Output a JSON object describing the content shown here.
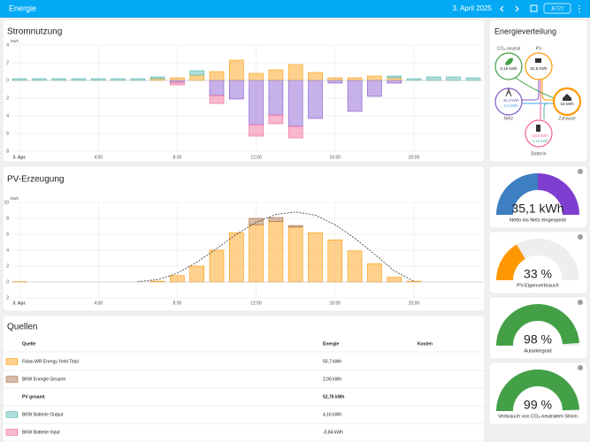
{
  "header": {
    "title": "Energie",
    "date": "3. April 2025",
    "button": "JETZT"
  },
  "chart_data": [
    {
      "type": "bar",
      "title": "Stromnutzung",
      "y_label": "kWh",
      "stacked": true,
      "grid": true,
      "categories": [
        "3. Apr.",
        null,
        null,
        null,
        "4:00",
        null,
        null,
        null,
        "8:00",
        null,
        null,
        null,
        "12:00",
        null,
        null,
        null,
        "16:00",
        null,
        null,
        null,
        "20:00",
        null,
        null,
        null
      ],
      "ylim": [
        -8,
        4
      ],
      "yticks": [
        {
          "value": -8,
          "label": "8"
        },
        {
          "value": -6,
          "label": "6"
        },
        {
          "value": -4,
          "label": "4"
        },
        {
          "value": -2,
          "label": "2"
        },
        0,
        2,
        4
      ],
      "series": [
        {
          "color": "#ff9800",
          "values": [
            0,
            0,
            0,
            0,
            0,
            0,
            0,
            0.2,
            0.3,
            0.6,
            1.0,
            2.3,
            0.8,
            1.2,
            1.8,
            0.9,
            0.3,
            0.3,
            0.5,
            0.3,
            0,
            0,
            0,
            0
          ]
        },
        {
          "color": "#4db6ac",
          "values": [
            0.2,
            0.2,
            0.2,
            0.2,
            0.2,
            0.2,
            0.2,
            0.2,
            0,
            0.5,
            0,
            0,
            0,
            0,
            0,
            0,
            0,
            0,
            0,
            0.2,
            0.2,
            0.4,
            0.4,
            0.3
          ]
        },
        {
          "color": "#8353d1",
          "values": [
            0,
            0,
            0,
            0,
            0,
            0,
            0,
            0,
            -0.2,
            0,
            -1.7,
            -2.1,
            -5.0,
            -3.9,
            -5.2,
            -4.3,
            -0.3,
            -3.5,
            -1.8,
            -0.3,
            0,
            0,
            0,
            0
          ]
        },
        {
          "color": "#f06292",
          "values": [
            0,
            0,
            0,
            0,
            0,
            0,
            0,
            0,
            -0.3,
            0,
            -0.9,
            0,
            -1.3,
            -1.0,
            -1.3,
            0,
            0,
            0,
            0,
            0,
            0,
            0,
            0,
            0
          ]
        }
      ]
    },
    {
      "type": "bar",
      "title": "PV-Erzeugung",
      "y_label": "kWh",
      "stacked": true,
      "grid": true,
      "categories": [
        "3. Apr.",
        null,
        null,
        null,
        "4:00",
        null,
        null,
        null,
        "8:00",
        null,
        null,
        null,
        "12:00",
        null,
        null,
        null,
        "16:00",
        null,
        null,
        null,
        "20:00",
        null,
        null,
        null
      ],
      "ylim": [
        -2,
        10
      ],
      "yticks": [
        {
          "value": -2,
          "label": "2"
        },
        0,
        2,
        4,
        6,
        8,
        10
      ],
      "series": [
        {
          "color": "#ff9800",
          "values": [
            0.05,
            0,
            0,
            0,
            0,
            0,
            0,
            0.1,
            0.8,
            2.0,
            4.0,
            6.2,
            7.2,
            7.6,
            6.9,
            6.2,
            5.3,
            3.9,
            2.3,
            0.6,
            0.1,
            0,
            0,
            0
          ]
        },
        {
          "color": "#a5683c",
          "values": [
            0,
            0,
            0,
            0,
            0,
            0,
            0,
            0,
            0,
            0,
            0,
            0,
            0.8,
            0.5,
            0.2,
            0,
            0,
            0,
            0,
            0,
            0,
            0,
            0,
            0
          ]
        },
        {
          "type": "line",
          "dashed": true,
          "color": "#333333",
          "values": [
            null,
            null,
            null,
            null,
            null,
            null,
            0.05,
            0.3,
            1.1,
            2.5,
            4.2,
            6.0,
            7.5,
            8.5,
            8.8,
            8.4,
            7.2,
            5.5,
            3.5,
            1.4,
            0.1,
            null,
            null,
            null
          ]
        }
      ]
    }
  ],
  "sources": {
    "title": "Quellen",
    "columns": [
      "Quelle",
      "Energie",
      "Kosten"
    ],
    "pv_rows": [
      {
        "name": "Fidan-WR Energy Yield Total",
        "energy": "50,7 kWh",
        "color": "#ff9800"
      },
      {
        "name": "BKW Energie Gesamt",
        "energy": "2,06 kWh",
        "color": "#a5683c"
      }
    ],
    "subtotal": {
      "name": "PV gesamt",
      "energy": "52,76 kWh"
    },
    "battery_rows": [
      {
        "name": "BKW Batterie Output",
        "energy": "4,16 kWh",
        "color": "#4db6ac"
      },
      {
        "name": "BKW Batterie Input",
        "energy": "-5,84 kWh",
        "color": "#f06292"
      }
    ]
  },
  "distribution": {
    "title": "Energieverteilung",
    "co2": {
      "label": "CO₂-neutral",
      "value": "0,16 kWh"
    },
    "pv": {
      "label": "PV",
      "value": "52,8 kWh"
    },
    "grid": {
      "label": "Netz",
      "out": "← 35,4 kWh",
      "in": "→ 0,3 kWh"
    },
    "home": {
      "label": "Zuhause",
      "value": "16 kWh"
    },
    "battery": {
      "label": "Batterie",
      "in": "↓ 5,84 kWh",
      "out": "↑ 4,16 kWh"
    }
  },
  "gauges": [
    {
      "value": 35.1,
      "value_label": "35,1 kWh",
      "caption": "Netto ins Netz eingespeist"
    },
    {
      "value": 33,
      "value_label": "33 %",
      "caption": "PV-Eigenverbrauch",
      "range": [
        0,
        100
      ],
      "color": "#ff9800"
    },
    {
      "value": 98,
      "value_label": "98 %",
      "caption": "Autarkiegrad",
      "range": [
        0,
        100
      ],
      "color": "#43a047"
    },
    {
      "value": 99,
      "value_label": "99 %",
      "caption": "Verbrauch von CO₂-neutralem Strom",
      "range": [
        0,
        100
      ],
      "color": "#43a047"
    }
  ]
}
